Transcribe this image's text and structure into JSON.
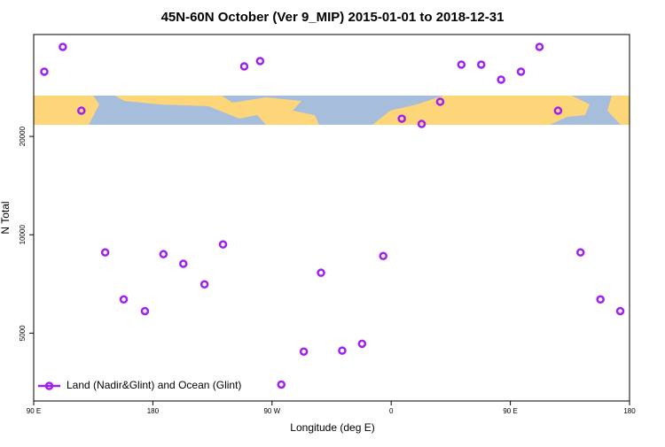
{
  "chart_data": {
    "type": "scatter",
    "title": "45N-60N October (Ver 9_MIP)   2015-01-01 to 2018-12-31",
    "x_label": "Longitude (deg E)",
    "y_label": "N Total",
    "series": [
      {
        "name": "Land (Nadir&Glint) and Ocean (Glint)",
        "color": "#a020f0",
        "x": [
          98,
          112,
          126,
          144,
          158,
          174,
          188,
          203,
          219,
          233,
          249,
          261,
          277,
          294,
          307,
          323,
          338,
          354,
          368,
          383,
          397,
          413,
          428,
          443,
          458,
          472,
          486,
          503,
          518,
          533
        ],
        "values": [
          31560,
          37580,
          23970,
          8830,
          6340,
          5840,
          8720,
          8150,
          7050,
          9340,
          32760,
          34010,
          3480,
          4390,
          7650,
          4420,
          4640,
          8610,
          22660,
          21830,
          25530,
          33170,
          33170,
          29830,
          31560,
          37580,
          23970,
          8830,
          6340,
          5840
        ]
      }
    ],
    "xlim": [
      90,
      540
    ],
    "xticks": [
      {
        "value": 90,
        "label": "90 E"
      },
      {
        "value": 180,
        "label": "180"
      },
      {
        "value": 270,
        "label": "90 W"
      },
      {
        "value": 360,
        "label": "0"
      },
      {
        "value": 450,
        "label": "90 E"
      },
      {
        "value": 540,
        "label": "180"
      }
    ],
    "ylim": [
      3100,
      41000
    ],
    "yticks": [
      5000,
      10000,
      20000
    ],
    "log_y": true,
    "legend": "lower-left"
  }
}
